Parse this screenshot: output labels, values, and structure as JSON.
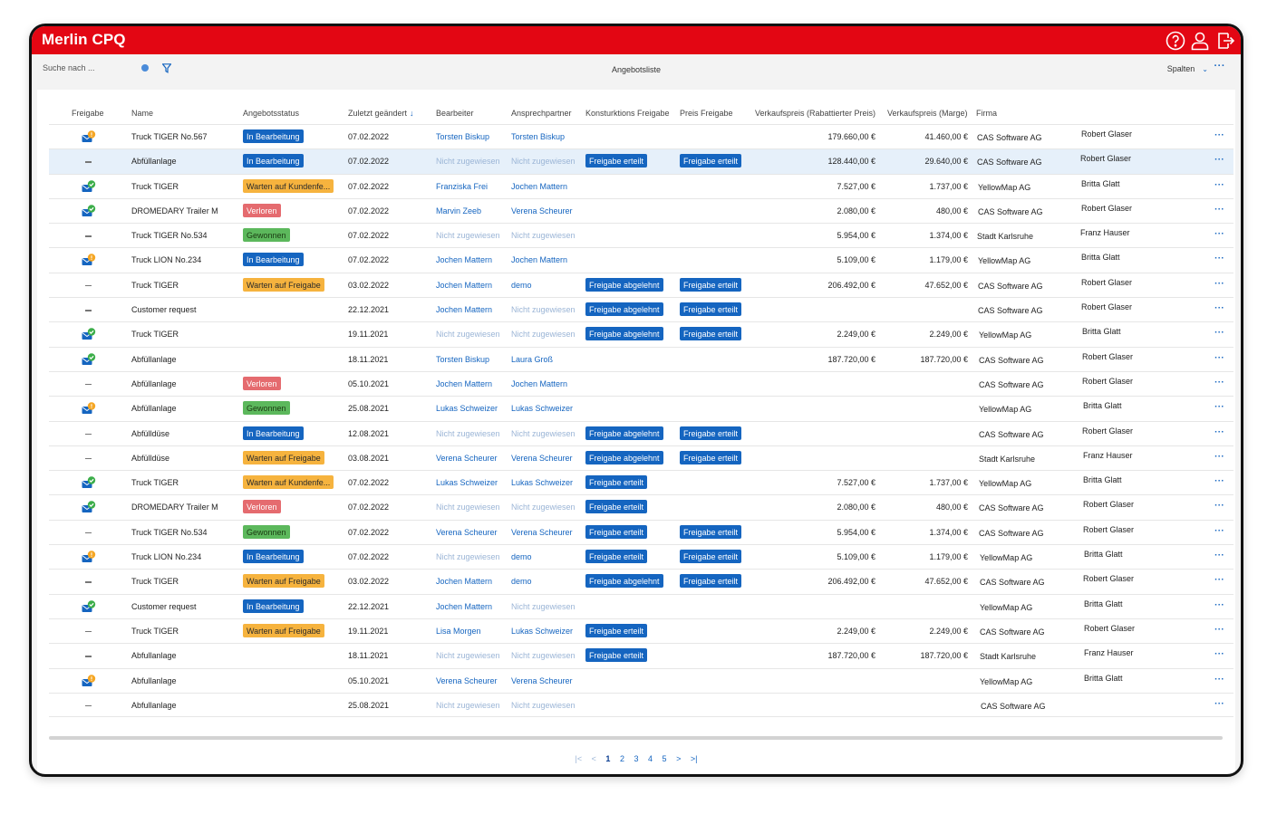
{
  "app": {
    "title": "Merlin CPQ"
  },
  "colors": {
    "brand": "#e30613",
    "accent": "#1565c0"
  },
  "toolbar": {
    "search_placeholder": "Suche nach ...",
    "list_title": "Angebotsliste",
    "columns_label": "Spalten",
    "more_label": "···",
    "clear_icon": "clear-icon",
    "filter_icon": "filter-icon"
  },
  "topicons": [
    "help-icon",
    "user-icon",
    "logout-icon"
  ],
  "table": {
    "headers": {
      "freigabe": "Freigabe",
      "name": "Name",
      "status": "Angebotsstatus",
      "changed": "Zuletzt geändert",
      "editor": "Bearbeiter",
      "contact": "Ansprechpartner",
      "konst": "Konsturktions Freigabe",
      "preis": "Preis Freigabe",
      "vk": "Verkaufspreis (Rabattierter Preis)",
      "marge": "Verkaufspreis (Marge)",
      "firma": "Firma"
    },
    "sort_icon": "arrow-down-icon",
    "row_more_label": "···",
    "rows": [
      {
        "freigabe": "pending",
        "name": "Truck TIGER No.567",
        "status": "In Bearbeitung",
        "status_color": "blue",
        "date": "07.02.2022",
        "editor": "Torsten Biskup",
        "editor_assigned": true,
        "contact": "Torsten Biskup",
        "contact_assigned": true,
        "konst": "",
        "preis": "",
        "vk": "179.660,00 €",
        "marge": "41.460,00 €",
        "firma": "CAS Software AG",
        "owner": "Robert Glaser",
        "selected": false
      },
      {
        "freigabe": "none",
        "name": "Abfüllanlage",
        "status": "In Bearbeitung",
        "status_color": "blue",
        "date": "07.02.2022",
        "editor": "Nicht zugewiesen",
        "editor_assigned": false,
        "contact": "Nicht zugewiesen",
        "contact_assigned": false,
        "konst": "Freigabe erteilt",
        "preis": "Freigabe erteilt",
        "vk": "128.440,00 €",
        "marge": "29.640,00 €",
        "firma": "CAS Software AG",
        "owner": "Robert Glaser",
        "selected": true
      },
      {
        "freigabe": "approved",
        "name": "Truck TIGER",
        "status": "Warten auf Kundenfe...",
        "status_color": "orange",
        "date": "07.02.2022",
        "editor": "Franziska Frei",
        "editor_assigned": true,
        "contact": "Jochen Mattern",
        "contact_assigned": true,
        "konst": "",
        "preis": "",
        "vk": "7.527,00 €",
        "marge": "1.737,00 €",
        "firma": "YellowMap AG",
        "owner": "Britta Glatt",
        "selected": false
      },
      {
        "freigabe": "approved",
        "name": "DROMEDARY Trailer M",
        "status": "Verloren",
        "status_color": "red",
        "date": "07.02.2022",
        "editor": "Marvin Zeeb",
        "editor_assigned": true,
        "contact": "Verena Scheurer",
        "contact_assigned": true,
        "konst": "",
        "preis": "",
        "vk": "2.080,00 €",
        "marge": "480,00 €",
        "firma": "CAS Software AG",
        "owner": "Robert Glaser",
        "selected": false
      },
      {
        "freigabe": "none",
        "name": "Truck TIGER No.534",
        "status": "Gewonnen",
        "status_color": "green",
        "date": "07.02.2022",
        "editor": "Nicht zugewiesen",
        "editor_assigned": false,
        "contact": "Nicht zugewiesen",
        "contact_assigned": false,
        "konst": "",
        "preis": "",
        "vk": "5.954,00 €",
        "marge": "1.374,00 €",
        "firma": "Stadt Karlsruhe",
        "owner": "Franz Hauser",
        "selected": false
      },
      {
        "freigabe": "pending",
        "name": "Truck LION No.234",
        "status": "In Bearbeitung",
        "status_color": "blue",
        "date": "07.02.2022",
        "editor": "Jochen Mattern",
        "editor_assigned": true,
        "contact": "Jochen Mattern",
        "contact_assigned": true,
        "konst": "",
        "preis": "",
        "vk": "5.109,00 €",
        "marge": "1.179,00 €",
        "firma": "YellowMap AG",
        "owner": "Britta Glatt",
        "selected": false
      },
      {
        "freigabe": "none",
        "name": "Truck TIGER",
        "status": "Warten auf Freigabe",
        "status_color": "orange",
        "date": "03.02.2022",
        "editor": "Jochen Mattern",
        "editor_assigned": true,
        "contact": "demo",
        "contact_assigned": true,
        "konst": "Freigabe abgelehnt",
        "preis": "Freigabe erteilt",
        "vk": "206.492,00 €",
        "marge": "47.652,00 €",
        "firma": "CAS Software AG",
        "owner": "Robert Glaser",
        "selected": false
      },
      {
        "freigabe": "none",
        "name": "Customer request",
        "status": "",
        "status_color": "",
        "date": "22.12.2021",
        "editor": "Jochen Mattern",
        "editor_assigned": true,
        "contact": "Nicht zugewiesen",
        "contact_assigned": false,
        "konst": "Freigabe abgelehnt",
        "preis": "Freigabe erteilt",
        "vk": "",
        "marge": "",
        "firma": "CAS Software AG",
        "owner": "Robert Glaser",
        "selected": false
      },
      {
        "freigabe": "approved",
        "name": "Truck TIGER",
        "status": "",
        "status_color": "",
        "date": "19.11.2021",
        "editor": "Nicht zugewiesen",
        "editor_assigned": false,
        "contact": "Nicht zugewiesen",
        "contact_assigned": false,
        "konst": "Freigabe abgelehnt",
        "preis": "Freigabe erteilt",
        "vk": "2.249,00 €",
        "marge": "2.249,00 €",
        "firma": "YellowMap AG",
        "owner": "Britta Glatt",
        "selected": false
      },
      {
        "freigabe": "approved",
        "name": "Abfüllanlage",
        "status": "",
        "status_color": "",
        "date": "18.11.2021",
        "editor": "Torsten Biskup",
        "editor_assigned": true,
        "contact": "Laura Groß",
        "contact_assigned": true,
        "konst": "",
        "preis": "",
        "vk": "187.720,00 €",
        "marge": "187.720,00 €",
        "firma": "CAS Software AG",
        "owner": "Robert Glaser",
        "selected": false
      },
      {
        "freigabe": "none",
        "name": "Abfüllanlage",
        "status": "Verloren",
        "status_color": "red",
        "date": "05.10.2021",
        "editor": "Jochen Mattern",
        "editor_assigned": true,
        "contact": "Jochen Mattern",
        "contact_assigned": true,
        "konst": "",
        "preis": "",
        "vk": "",
        "marge": "",
        "firma": "CAS Software AG",
        "owner": "Robert Glaser",
        "selected": false
      },
      {
        "freigabe": "pending",
        "name": "Abfüllanlage",
        "status": "Gewonnen",
        "status_color": "green",
        "date": "25.08.2021",
        "editor": "Lukas Schweizer",
        "editor_assigned": true,
        "contact": "Lukas Schweizer",
        "contact_assigned": true,
        "konst": "",
        "preis": "",
        "vk": "",
        "marge": "",
        "firma": "YellowMap AG",
        "owner": "Britta Glatt",
        "selected": false
      },
      {
        "freigabe": "none",
        "name": "Abfülldüse",
        "status": "In Bearbeitung",
        "status_color": "blue",
        "date": "12.08.2021",
        "editor": "Nicht zugewiesen",
        "editor_assigned": false,
        "contact": "Nicht zugewiesen",
        "contact_assigned": false,
        "konst": "Freigabe abgelehnt",
        "preis": "Freigabe erteilt",
        "vk": "",
        "marge": "",
        "firma": "CAS Software AG",
        "owner": "Robert Glaser",
        "selected": false
      },
      {
        "freigabe": "none",
        "name": "Abfülldüse",
        "status": "Warten auf Freigabe",
        "status_color": "orange",
        "date": "03.08.2021",
        "editor": "Verena Scheurer",
        "editor_assigned": true,
        "contact": "Verena Scheurer",
        "contact_assigned": true,
        "konst": "Freigabe abgelehnt",
        "preis": "Freigabe erteilt",
        "vk": "",
        "marge": "",
        "firma": "Stadt Karlsruhe",
        "owner": "Franz Hauser",
        "selected": false
      },
      {
        "freigabe": "approved",
        "name": "Truck TIGER",
        "status": "Warten auf Kundenfe...",
        "status_color": "orange",
        "date": "07.02.2022",
        "editor": "Lukas Schweizer",
        "editor_assigned": true,
        "contact": "Lukas Schweizer",
        "contact_assigned": true,
        "konst": "Freigabe erteilt",
        "preis": "",
        "vk": "7.527,00 €",
        "marge": "1.737,00 €",
        "firma": "YellowMap AG",
        "owner": "Britta Glatt",
        "selected": false
      },
      {
        "freigabe": "approved",
        "name": "DROMEDARY Trailer M",
        "status": "Verloren",
        "status_color": "red",
        "date": "07.02.2022",
        "editor": "Nicht zugewiesen",
        "editor_assigned": false,
        "contact": "Nicht zugewiesen",
        "contact_assigned": false,
        "konst": "Freigabe erteilt",
        "preis": "",
        "vk": "2.080,00 €",
        "marge": "480,00 €",
        "firma": "CAS Software AG",
        "owner": "Robert Glaser",
        "selected": false
      },
      {
        "freigabe": "none",
        "name": "Truck TIGER No.534",
        "status": "Gewonnen",
        "status_color": "green",
        "date": "07.02.2022",
        "editor": "Verena Scheurer",
        "editor_assigned": true,
        "contact": "Verena Scheurer",
        "contact_assigned": true,
        "konst": "Freigabe erteilt",
        "preis": "Freigabe erteilt",
        "vk": "5.954,00 €",
        "marge": "1.374,00 €",
        "firma": "CAS Software AG",
        "owner": "Robert Glaser",
        "selected": false
      },
      {
        "freigabe": "pending",
        "name": "Truck LION No.234",
        "status": "In Bearbeitung",
        "status_color": "blue",
        "date": "07.02.2022",
        "editor": "Nicht zugewiesen",
        "editor_assigned": false,
        "contact": "demo",
        "contact_assigned": true,
        "konst": "Freigabe erteilt",
        "preis": "Freigabe erteilt",
        "vk": "5.109,00 €",
        "marge": "1.179,00 €",
        "firma": "YellowMap AG",
        "owner": "Britta Glatt",
        "selected": false
      },
      {
        "freigabe": "none",
        "name": "Truck TIGER",
        "status": "Warten auf Freigabe",
        "status_color": "orange",
        "date": "03.02.2022",
        "editor": "Jochen Mattern",
        "editor_assigned": true,
        "contact": "demo",
        "contact_assigned": true,
        "konst": "Freigabe abgelehnt",
        "preis": "Freigabe erteilt",
        "vk": "206.492,00 €",
        "marge": "47.652,00 €",
        "firma": "CAS Software AG",
        "owner": "Robert Glaser",
        "selected": false
      },
      {
        "freigabe": "approved",
        "name": "Customer request",
        "status": "In Bearbeitung",
        "status_color": "blue",
        "date": "22.12.2021",
        "editor": "Jochen Mattern",
        "editor_assigned": true,
        "contact": "Nicht zugewiesen",
        "contact_assigned": false,
        "konst": "",
        "preis": "",
        "vk": "",
        "marge": "",
        "firma": "YellowMap AG",
        "owner": "Britta Glatt",
        "selected": false
      },
      {
        "freigabe": "none",
        "name": "Truck TIGER",
        "status": "Warten auf Freigabe",
        "status_color": "orange",
        "date": "19.11.2021",
        "editor": "Lisa Morgen",
        "editor_assigned": true,
        "contact": "Lukas Schweizer",
        "contact_assigned": true,
        "konst": "Freigabe erteilt",
        "preis": "",
        "vk": "2.249,00 €",
        "marge": "2.249,00 €",
        "firma": "CAS Software AG",
        "owner": "Robert Glaser",
        "selected": false
      },
      {
        "freigabe": "none",
        "name": "Abfullanlage",
        "status": "",
        "status_color": "",
        "date": "18.11.2021",
        "editor": "Nicht zugewiesen",
        "editor_assigned": false,
        "contact": "Nicht zugewiesen",
        "contact_assigned": false,
        "konst": "Freigabe erteilt",
        "preis": "",
        "vk": "187.720,00 €",
        "marge": "187.720,00 €",
        "firma": "Stadt Karlsruhe",
        "owner": "Franz Hauser",
        "selected": false
      },
      {
        "freigabe": "pending",
        "name": "Abfullanlage",
        "status": "",
        "status_color": "",
        "date": "05.10.2021",
        "editor": "Verena Scheurer",
        "editor_assigned": true,
        "contact": "Verena Scheurer",
        "contact_assigned": true,
        "konst": "",
        "preis": "",
        "vk": "",
        "marge": "",
        "firma": "YellowMap AG",
        "owner": "Britta Glatt",
        "selected": false
      },
      {
        "freigabe": "none",
        "name": "Abfullanlage",
        "status": "",
        "status_color": "",
        "date": "25.08.2021",
        "editor": "Nicht zugewiesen",
        "editor_assigned": false,
        "contact": "Nicht zugewiesen",
        "contact_assigned": false,
        "konst": "",
        "preis": "",
        "vk": "",
        "marge": "",
        "firma": "CAS Software AG",
        "owner": "",
        "selected": false
      }
    ]
  },
  "pagination": {
    "first": "|<",
    "prev": "<",
    "pages": [
      "1",
      "2",
      "3",
      "4",
      "5"
    ],
    "current": "1",
    "next": ">",
    "last": ">|"
  }
}
